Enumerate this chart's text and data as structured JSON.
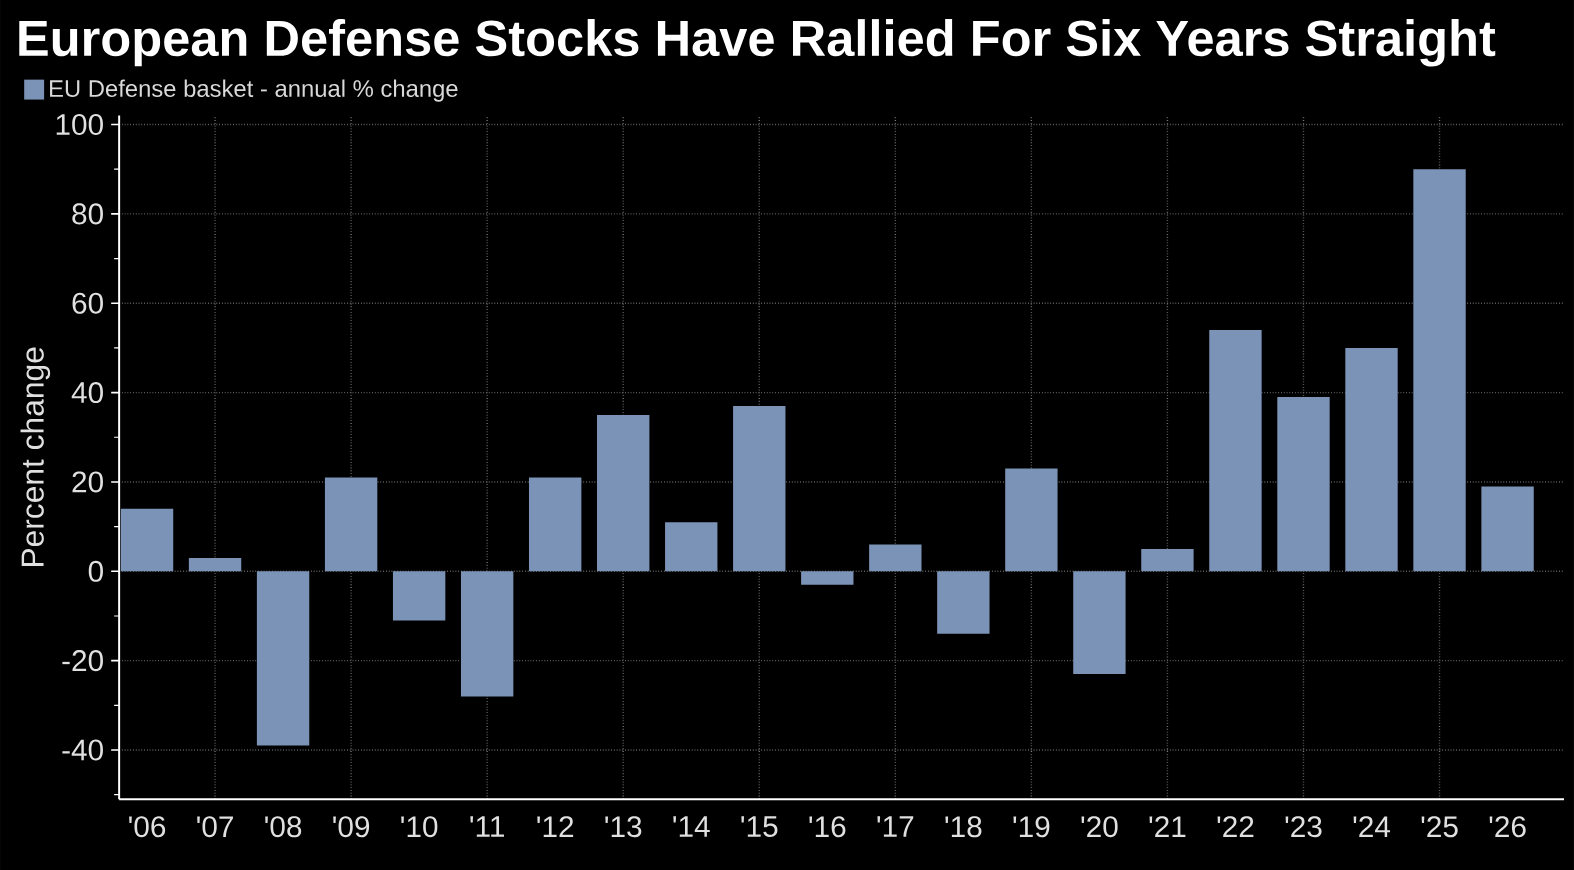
{
  "chart_data": {
    "type": "bar",
    "title": "European Defense Stocks Have Rallied For Six Years Straight",
    "ylabel": "Percent change",
    "categories": [
      "'06",
      "'07",
      "'08",
      "'09",
      "'10",
      "'11",
      "'12",
      "'13",
      "'14",
      "'15",
      "'16",
      "'17",
      "'18",
      "'19",
      "'20",
      "'21",
      "'22",
      "'23",
      "'24",
      "'25",
      "'26"
    ],
    "series": [
      {
        "name": "EU Defense basket - annual % change",
        "color": "#7b93b6",
        "values": [
          14,
          3,
          -39,
          21,
          -11,
          -28,
          21,
          35,
          11,
          37,
          -3,
          6,
          -14,
          23,
          -23,
          5,
          54,
          39,
          50,
          90,
          19
        ]
      }
    ],
    "ylim": [
      -51,
      102
    ],
    "yticks": [
      -40,
      -20,
      0,
      20,
      40,
      60,
      80,
      100
    ],
    "grid": true,
    "legend": "top left"
  }
}
